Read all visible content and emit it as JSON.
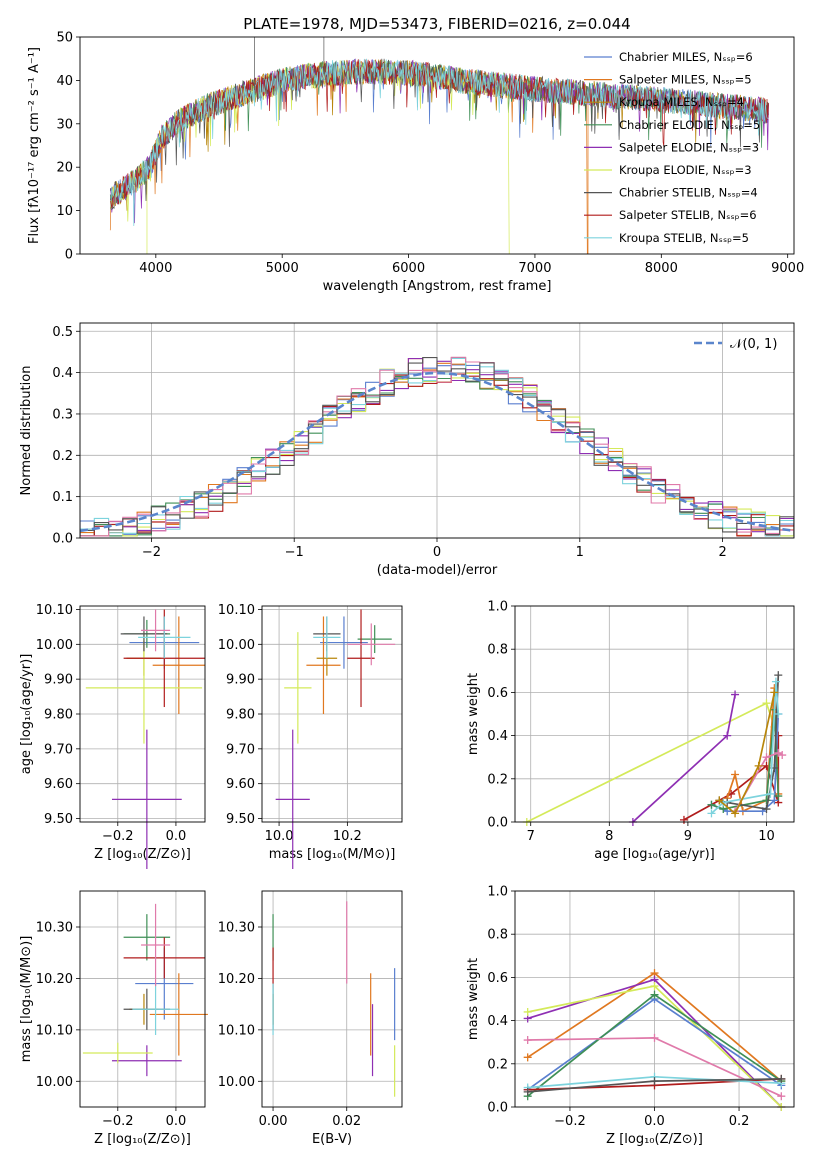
{
  "figure": {
    "title": "PLATE=1978, MJD=53473, FIBERID=0216, z=0.044"
  },
  "colors": {
    "cm": "#5a7fcf",
    "sm": "#e07820",
    "km": "#b8860b",
    "ce": "#3f8f56",
    "se": "#8e2fb3",
    "ke": "#d4ea5a",
    "cs": "#555555",
    "ss": "#b01c1c",
    "ks": "#7dd3dd",
    "pink": "#e07aaa",
    "normal": "#5a85cc"
  },
  "chart_data": [
    {
      "id": "spectrum",
      "type": "line",
      "title": "PLATE=1978, MJD=53473, FIBERID=0216, z=0.044",
      "xlabel": "wavelength [Angstrom, rest frame]",
      "ylabel": "Flux [fλ10⁻¹⁷ erg cm⁻² s⁻¹ A⁻¹]",
      "xlim": [
        3400,
        9050
      ],
      "ylim": [
        0,
        50
      ],
      "xticks": [
        4000,
        5000,
        6000,
        7000,
        8000,
        9000
      ],
      "yticks": [
        0,
        10,
        20,
        30,
        40,
        50
      ],
      "grid": false,
      "legend_position": "top-right",
      "legend": [
        "Chabrier MILES, Nₛₛₚ=6",
        "Salpeter MILES, Nₛₛₚ=5",
        "Kroupa MILES, Nₛₛₚ=4",
        "Chabrier ELODIE, Nₛₛₚ=5",
        "Salpeter ELODIE, Nₛₛₚ=3",
        "Kroupa ELODIE, Nₛₛₚ=3",
        "Chabrier STELIB, Nₛₛₚ=4",
        "Salpeter STELIB, Nₛₛₚ=6",
        "Kroupa STELIB, Nₛₛₚ=5"
      ],
      "continuum": [
        [
          3640,
          13
        ],
        [
          3800,
          16
        ],
        [
          3950,
          20
        ],
        [
          4050,
          27
        ],
        [
          4200,
          31
        ],
        [
          4400,
          34
        ],
        [
          4600,
          36
        ],
        [
          4800,
          38
        ],
        [
          5000,
          40
        ],
        [
          5200,
          41
        ],
        [
          5500,
          42
        ],
        [
          5800,
          42
        ],
        [
          6100,
          41.5
        ],
        [
          6400,
          40
        ],
        [
          6700,
          39
        ],
        [
          7000,
          38
        ],
        [
          7400,
          37
        ],
        [
          7800,
          36
        ],
        [
          8200,
          35
        ],
        [
          8500,
          34
        ],
        [
          8700,
          33.5
        ],
        [
          8850,
          33
        ]
      ],
      "series_spans": [
        [
          3640,
          8850
        ],
        [
          3640,
          7420
        ],
        [
          3640,
          8850
        ],
        [
          3640,
          8850
        ],
        [
          3640,
          8850
        ],
        [
          3640,
          6800
        ],
        [
          3640,
          8850
        ],
        [
          3640,
          8850
        ],
        [
          3640,
          8850
        ]
      ]
    },
    {
      "id": "residuals",
      "type": "line",
      "xlabel": "(data-model)/error",
      "ylabel": "Normed distribution",
      "xlim": [
        -2.5,
        2.5
      ],
      "ylim": [
        0,
        0.52
      ],
      "xticks": [
        -2,
        -1,
        0,
        1,
        2
      ],
      "yticks": [
        0.0,
        0.1,
        0.2,
        0.3,
        0.4,
        0.5
      ],
      "grid": true,
      "legend": [
        "𝒩(0, 1)"
      ],
      "legend_position": "top-right"
    },
    {
      "id": "age_vs_Z",
      "type": "scatter",
      "xlabel": "Z [log₁₀(Z/Z⊙)]",
      "ylabel": "age  [log₁₀(age/yr)]",
      "xlim": [
        -0.33,
        0.1
      ],
      "ylim": [
        9.49,
        10.11
      ],
      "xticks": [
        -0.2,
        0.0
      ],
      "yticks": [
        9.5,
        9.6,
        9.7,
        9.8,
        9.9,
        10.0,
        10.1
      ],
      "grid": true,
      "points": [
        {
          "c": "cm",
          "x": -0.04,
          "y": 10.005,
          "ex": 0.12,
          "ey": 0.075
        },
        {
          "c": "sm",
          "x": 0.01,
          "y": 9.94,
          "ex": 0.09,
          "ey": 0.14
        },
        {
          "c": "km",
          "x": -0.11,
          "y": 9.96,
          "ex": 0.06,
          "ey": 0.05
        },
        {
          "c": "ce",
          "x": -0.1,
          "y": 10.03,
          "ex": 0.08,
          "ey": 0.04
        },
        {
          "c": "se",
          "x": -0.1,
          "y": 9.555,
          "ex": 0.12,
          "ey": 0.2
        },
        {
          "c": "ke",
          "x": -0.11,
          "y": 9.875,
          "ex": 0.2,
          "ey": 0.16
        },
        {
          "c": "cs",
          "x": -0.11,
          "y": 10.03,
          "ex": 0.08,
          "ey": 0.05
        },
        {
          "c": "ss",
          "x": -0.04,
          "y": 9.96,
          "ex": 0.14,
          "ey": 0.14
        },
        {
          "c": "ks",
          "x": -0.04,
          "y": 10.02,
          "ex": 0.09,
          "ey": 0.06
        },
        {
          "c": "pink",
          "x": -0.07,
          "y": 10.04,
          "ex": 0.05,
          "ey": 0.06
        }
      ]
    },
    {
      "id": "age_vs_mass",
      "type": "scatter",
      "xlabel": "mass [log₁₀(M/M⊙)]",
      "ylabel": "",
      "xlim": [
        9.95,
        10.36
      ],
      "ylim": [
        9.49,
        10.11
      ],
      "xticks": [
        10.0,
        10.2
      ],
      "yticks": [
        9.5,
        9.6,
        9.7,
        9.8,
        9.9,
        10.0,
        10.1
      ],
      "grid": true,
      "points": [
        {
          "c": "cm",
          "x": 10.19,
          "y": 10.005,
          "ex": 0.07,
          "ey": 0.075
        },
        {
          "c": "sm",
          "x": 10.13,
          "y": 9.94,
          "ex": 0.05,
          "ey": 0.14
        },
        {
          "c": "km",
          "x": 10.14,
          "y": 9.96,
          "ex": 0.03,
          "ey": 0.05
        },
        {
          "c": "ce",
          "x": 10.28,
          "y": 10.015,
          "ex": 0.05,
          "ey": 0.04
        },
        {
          "c": "se",
          "x": 10.04,
          "y": 9.555,
          "ex": 0.05,
          "ey": 0.2
        },
        {
          "c": "ke",
          "x": 10.055,
          "y": 9.875,
          "ex": 0.04,
          "ey": 0.16
        },
        {
          "c": "cs",
          "x": 10.14,
          "y": 10.03,
          "ex": 0.04,
          "ey": 0.05
        },
        {
          "c": "ss",
          "x": 10.24,
          "y": 9.96,
          "ex": 0.04,
          "ey": 0.14
        },
        {
          "c": "ks",
          "x": 10.14,
          "y": 10.02,
          "ex": 0.04,
          "ey": 0.06
        },
        {
          "c": "pink",
          "x": 10.27,
          "y": 10.0,
          "ex": 0.07,
          "ey": 0.06
        }
      ]
    },
    {
      "id": "weight_vs_age",
      "type": "line",
      "xlabel": "age  [log₁₀(age/yr)]",
      "ylabel": "mass weight",
      "xlim": [
        6.8,
        10.35
      ],
      "ylim": [
        0,
        1.0
      ],
      "xticks": [
        7,
        8,
        9,
        10
      ],
      "yticks": [
        0.0,
        0.2,
        0.4,
        0.6,
        0.8,
        1.0
      ],
      "grid": true,
      "series": [
        {
          "c": "ke",
          "x": [
            6.95,
            10.0,
            10.1
          ],
          "y": [
            0.0,
            0.55,
            0.44
          ]
        },
        {
          "c": "se",
          "x": [
            8.3,
            9.5,
            9.6
          ],
          "y": [
            0.0,
            0.4,
            0.59
          ]
        },
        {
          "c": "ss",
          "x": [
            8.95,
            9.55,
            10.0,
            10.15,
            10.15
          ],
          "y": [
            0.01,
            0.13,
            0.26,
            0.09,
            0.4
          ]
        },
        {
          "c": "sm",
          "x": [
            9.5,
            9.6,
            9.7,
            10.0,
            10.1,
            10.15
          ],
          "y": [
            0.11,
            0.22,
            0.05,
            0.1,
            0.62,
            0.13
          ]
        },
        {
          "c": "cm",
          "x": [
            9.3,
            9.5,
            9.95,
            10.1,
            10.15
          ],
          "y": [
            0.08,
            0.05,
            0.05,
            0.1,
            0.5
          ]
        },
        {
          "c": "ce",
          "x": [
            9.3,
            9.45,
            10.0,
            10.1,
            10.15
          ],
          "y": [
            0.08,
            0.06,
            0.1,
            0.52,
            0.12
          ]
        },
        {
          "c": "cs",
          "x": [
            9.4,
            9.5,
            10.0,
            10.1,
            10.15
          ],
          "y": [
            0.1,
            0.09,
            0.06,
            0.25,
            0.68
          ]
        },
        {
          "c": "ks",
          "x": [
            9.3,
            9.45,
            10.05,
            10.12,
            10.15
          ],
          "y": [
            0.04,
            0.09,
            0.13,
            0.65,
            0.5
          ]
        },
        {
          "c": "pink",
          "x": [
            9.6,
            10.0,
            10.15,
            10.2
          ],
          "y": [
            0.05,
            0.3,
            0.32,
            0.31
          ]
        },
        {
          "c": "km",
          "x": [
            9.4,
            9.6,
            9.9,
            10.1
          ],
          "y": [
            0.1,
            0.04,
            0.26,
            0.6
          ]
        }
      ]
    },
    {
      "id": "mass_vs_Z",
      "type": "scatter",
      "xlabel": "Z [log₁₀(Z/Z⊙)]",
      "ylabel": "mass [log₁₀(M/M⊙)]",
      "xlim": [
        -0.33,
        0.1
      ],
      "ylim": [
        9.95,
        10.37
      ],
      "xticks": [
        -0.2,
        0.0
      ],
      "yticks": [
        10.0,
        10.1,
        10.2,
        10.3
      ],
      "grid": true,
      "points": [
        {
          "c": "cm",
          "x": -0.04,
          "y": 10.19,
          "ex": 0.1,
          "ey": 0.07
        },
        {
          "c": "sm",
          "x": 0.01,
          "y": 10.13,
          "ex": 0.1,
          "ey": 0.08
        },
        {
          "c": "km",
          "x": -0.11,
          "y": 10.14,
          "ex": 0.05,
          "ey": 0.03
        },
        {
          "c": "ce",
          "x": -0.1,
          "y": 10.28,
          "ex": 0.08,
          "ey": 0.045
        },
        {
          "c": "se",
          "x": -0.1,
          "y": 10.04,
          "ex": 0.12,
          "ey": 0.03
        },
        {
          "c": "ke",
          "x": -0.2,
          "y": 10.055,
          "ex": 0.12,
          "ey": 0.02
        },
        {
          "c": "cs",
          "x": -0.1,
          "y": 10.14,
          "ex": 0.08,
          "ey": 0.04
        },
        {
          "c": "ss",
          "x": -0.04,
          "y": 10.24,
          "ex": 0.14,
          "ey": 0.04
        },
        {
          "c": "ks",
          "x": -0.07,
          "y": 10.14,
          "ex": 0.08,
          "ey": 0.05
        },
        {
          "c": "pink",
          "x": -0.07,
          "y": 10.265,
          "ex": 0.05,
          "ey": 0.08
        }
      ]
    },
    {
      "id": "mass_vs_ebv",
      "type": "scatter",
      "xlabel": "E(B-V)",
      "ylabel": "",
      "xlim": [
        -0.003,
        0.035
      ],
      "ylim": [
        9.95,
        10.37
      ],
      "xticks": [
        0.0,
        0.02
      ],
      "yticks": [
        10.0,
        10.1,
        10.2,
        10.3
      ],
      "grid": true,
      "points": [
        {
          "c": "cm",
          "x": 0.033,
          "y": 10.15,
          "ex": 0,
          "ey": 0.07
        },
        {
          "c": "sm",
          "x": 0.0265,
          "y": 10.13,
          "ex": 0,
          "ey": 0.08
        },
        {
          "c": "km",
          "x": 0.0,
          "y": 10.14,
          "ex": 0,
          "ey": 0.03
        },
        {
          "c": "ce",
          "x": 0.0,
          "y": 10.28,
          "ex": 0,
          "ey": 0.045
        },
        {
          "c": "se",
          "x": 0.027,
          "y": 10.08,
          "ex": 0,
          "ey": 0.07
        },
        {
          "c": "ke",
          "x": 0.033,
          "y": 10.02,
          "ex": 0,
          "ey": 0.05
        },
        {
          "c": "cs",
          "x": 0.0,
          "y": 10.14,
          "ex": 0,
          "ey": 0.04
        },
        {
          "c": "ss",
          "x": 0.0,
          "y": 10.22,
          "ex": 0,
          "ey": 0.04
        },
        {
          "c": "ks",
          "x": 0.0,
          "y": 10.14,
          "ex": 0,
          "ey": 0.05
        },
        {
          "c": "pink",
          "x": 0.02,
          "y": 10.27,
          "ex": 0,
          "ey": 0.08
        }
      ]
    },
    {
      "id": "weight_vs_Z",
      "type": "line",
      "xlabel": "Z [log₁₀(Z/Z⊙)]",
      "ylabel": "mass weight",
      "xlim": [
        -0.33,
        0.33
      ],
      "ylim": [
        0,
        1.0
      ],
      "xticks": [
        -0.2,
        0.0,
        0.2
      ],
      "yticks": [
        0.0,
        0.2,
        0.4,
        0.6,
        0.8,
        1.0
      ],
      "grid": true,
      "series": [
        {
          "c": "sm",
          "x": [
            -0.3,
            0.0,
            0.3
          ],
          "y": [
            0.23,
            0.62,
            0.12
          ]
        },
        {
          "c": "se",
          "x": [
            -0.3,
            0.0,
            0.3
          ],
          "y": [
            0.41,
            0.59,
            0.0
          ]
        },
        {
          "c": "ke",
          "x": [
            -0.3,
            0.0,
            0.3
          ],
          "y": [
            0.44,
            0.56,
            0.0
          ]
        },
        {
          "c": "cm",
          "x": [
            -0.3,
            0.0,
            0.3
          ],
          "y": [
            0.08,
            0.5,
            0.1
          ]
        },
        {
          "c": "ce",
          "x": [
            -0.3,
            0.0,
            0.3
          ],
          "y": [
            0.05,
            0.52,
            0.12
          ]
        },
        {
          "c": "pink",
          "x": [
            -0.3,
            0.0,
            0.3
          ],
          "y": [
            0.31,
            0.32,
            0.05
          ]
        },
        {
          "c": "ss",
          "x": [
            -0.3,
            0.0,
            0.3
          ],
          "y": [
            0.08,
            0.1,
            0.13
          ]
        },
        {
          "c": "ks",
          "x": [
            -0.3,
            0.0,
            0.3
          ],
          "y": [
            0.09,
            0.14,
            0.11
          ]
        },
        {
          "c": "cs",
          "x": [
            -0.3,
            0.0,
            0.3
          ],
          "y": [
            0.07,
            0.12,
            0.13
          ]
        }
      ]
    }
  ]
}
